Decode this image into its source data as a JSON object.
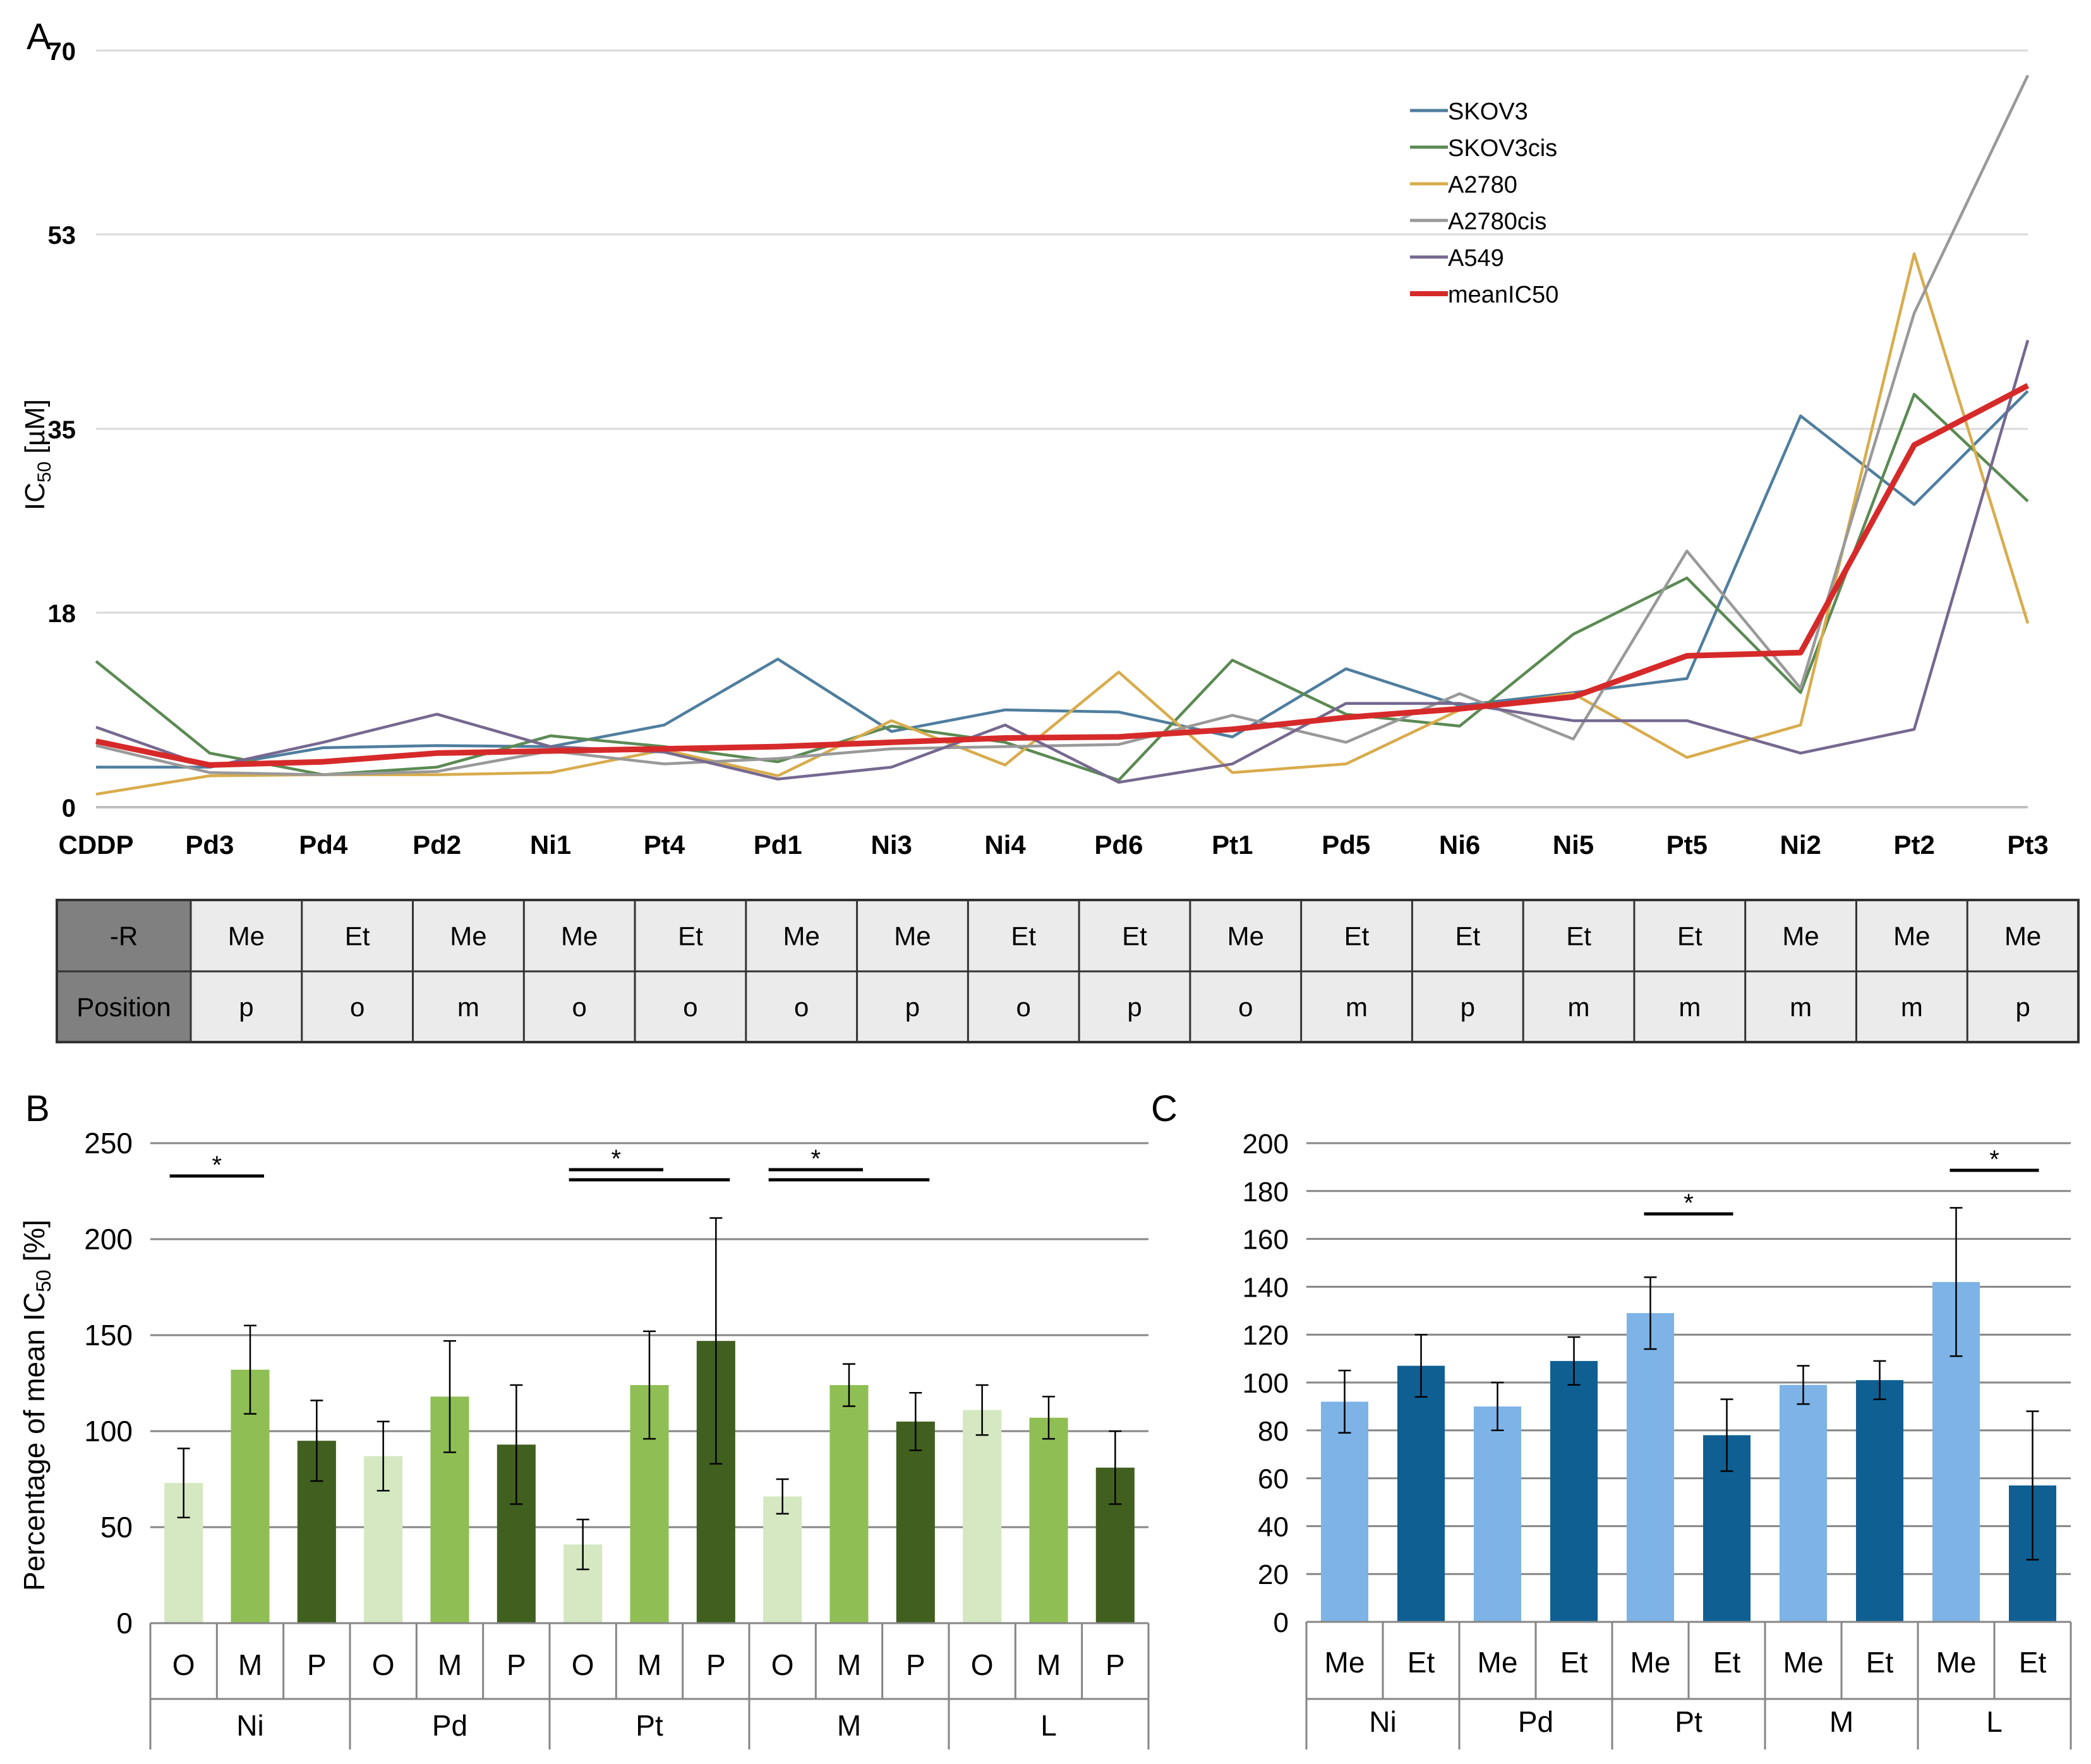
{
  "panel_letters": {
    "a": "A",
    "b": "B",
    "c": "C"
  },
  "chart_data": [
    {
      "panel": "A",
      "type": "line",
      "ylabel_main": "IC",
      "ylabel_sub": "50",
      "ylabel_unit": " [µM]",
      "categories": [
        "CDDP",
        "Pd3",
        "Pd4",
        "Pd2",
        "Ni1",
        "Pt4",
        "Pd1",
        "Ni3",
        "Ni4",
        "Pd6",
        "Pt1",
        "Pd5",
        "Ni6",
        "Ni5",
        "Pt5",
        "Ni2",
        "Pt2",
        "Pt3"
      ],
      "yticks": [
        0,
        18,
        35,
        53,
        70
      ],
      "ylim": [
        0,
        70
      ],
      "grid": true,
      "legend_position": "top-right",
      "series": [
        {
          "name": "SKOV3",
          "color": "#4f7e9e",
          "values": [
            3.7,
            3.7,
            5.5,
            5.7,
            5.6,
            7.6,
            13.7,
            7.0,
            9.0,
            8.8,
            6.5,
            12.8,
            9.4,
            10.6,
            11.9,
            36.2,
            28.0,
            38.5
          ]
        },
        {
          "name": "SKOV3cis",
          "color": "#5b8a53",
          "values": [
            13.5,
            5.0,
            3.0,
            3.7,
            6.6,
            5.6,
            4.2,
            7.5,
            6.0,
            2.5,
            13.6,
            8.6,
            7.5,
            16.0,
            21.2,
            10.6,
            38.2,
            28.3
          ]
        },
        {
          "name": "A2780",
          "color": "#d8ac4c",
          "values": [
            1.2,
            2.9,
            3.0,
            3.0,
            3.2,
            5.3,
            2.9,
            8.0,
            3.9,
            12.5,
            3.2,
            4.0,
            9.0,
            10.5,
            4.6,
            7.6,
            51.2,
            17.0
          ]
        },
        {
          "name": "A2780cis",
          "color": "#999999",
          "values": [
            5.7,
            3.2,
            3.0,
            3.3,
            5.2,
            4.0,
            4.5,
            5.4,
            5.6,
            5.8,
            8.5,
            6.0,
            10.5,
            6.3,
            23.7,
            11.0,
            45.7,
            67.7
          ]
        },
        {
          "name": "A549",
          "color": "#76688f",
          "values": [
            7.4,
            3.7,
            6.0,
            8.6,
            5.6,
            5.1,
            2.6,
            3.7,
            7.6,
            2.3,
            4.0,
            9.6,
            9.6,
            8.0,
            8.0,
            5.0,
            7.2,
            43.2
          ]
        },
        {
          "name": "meanIC50",
          "color": "#d62a2a",
          "values": [
            6.1,
            3.9,
            4.2,
            5.0,
            5.2,
            5.4,
            5.6,
            6.0,
            6.4,
            6.5,
            7.2,
            8.3,
            9.1,
            10.2,
            14.0,
            14.3,
            33.5,
            39.0
          ]
        }
      ]
    },
    {
      "panel": "B",
      "type": "bar",
      "ylabel_main": "Percentage of mean IC",
      "ylabel_sub": "50",
      "ylabel_unit": " [%]",
      "categories": [
        "O",
        "M",
        "P",
        "O",
        "M",
        "P",
        "O",
        "M",
        "P",
        "O",
        "M",
        "P",
        "O",
        "M",
        "P"
      ],
      "groups": [
        "Ni",
        "Pd",
        "Pt",
        "M",
        "L"
      ],
      "values": [
        73,
        132,
        95,
        87,
        118,
        93,
        41,
        124,
        147,
        66,
        124,
        105,
        111,
        107,
        81
      ],
      "errors": [
        18,
        23,
        21,
        18,
        29,
        31,
        13,
        28,
        64,
        9,
        11,
        15,
        13,
        11,
        19
      ],
      "bar_colors": [
        "#d5e8c1",
        "#8fbf54",
        "#41601f"
      ],
      "yticks": [
        0,
        50,
        100,
        150,
        200,
        250
      ],
      "ylim": [
        0,
        250
      ],
      "grid": true,
      "significance_label": "*"
    },
    {
      "panel": "C",
      "type": "bar",
      "categories": [
        "Me",
        "Et",
        "Me",
        "Et",
        "Me",
        "Et",
        "Me",
        "Et",
        "Me",
        "Et"
      ],
      "groups": [
        "Ni",
        "Pd",
        "Pt",
        "M",
        "L"
      ],
      "values": [
        92,
        107,
        90,
        109,
        129,
        78,
        99,
        101,
        142,
        57
      ],
      "errors": [
        13,
        13,
        10,
        10,
        15,
        15,
        8,
        8,
        31,
        31
      ],
      "bar_colors": [
        "#7db3e6",
        "#0f5f93"
      ],
      "yticks": [
        0,
        20,
        40,
        60,
        80,
        100,
        120,
        140,
        160,
        180,
        200
      ],
      "ylim": [
        0,
        200
      ],
      "grid": true,
      "significance_label": "*"
    }
  ],
  "substituent_table": {
    "row_headers": [
      "-R",
      "Position"
    ],
    "r_values": [
      "Me",
      "Et",
      "Me",
      "Me",
      "Et",
      "Me",
      "Me",
      "Et",
      "Et",
      "Me",
      "Et",
      "Et",
      "Et",
      "Et",
      "Me",
      "Me",
      "Me"
    ],
    "positions": [
      "p",
      "o",
      "m",
      "o",
      "o",
      "o",
      "p",
      "o",
      "p",
      "o",
      "m",
      "p",
      "m",
      "m",
      "m",
      "m",
      "p"
    ]
  }
}
